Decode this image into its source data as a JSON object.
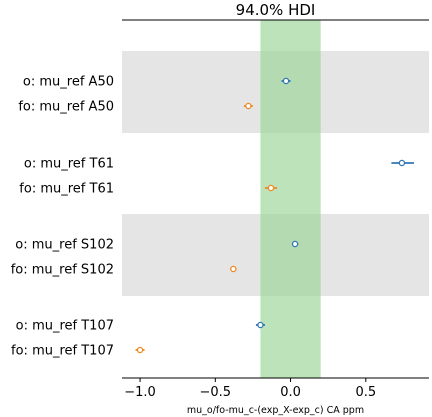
{
  "chart_data": {
    "type": "forest",
    "title": "94.0% HDI",
    "xlabel": "mu_o/fo-mu_c-(exp_X-exp_c) CA ppm",
    "xlim": [
      -1.12,
      0.92
    ],
    "xticks": [
      {
        "value": -1.0,
        "label": "−1.0"
      },
      {
        "value": -0.5,
        "label": "−0.5"
      },
      {
        "value": 0.0,
        "label": "0.0"
      },
      {
        "value": 0.5,
        "label": "0.5"
      }
    ],
    "rope": [
      -0.2,
      0.2
    ],
    "rope_color": "#98d494",
    "band_color": "#e5e5e5",
    "series_colors": {
      "o": "#2f77b5",
      "fo": "#ef8a22"
    },
    "groups": [
      {
        "shaded": true,
        "rows": [
          {
            "label": "o: mu_ref A50",
            "series": "o",
            "mean": -0.03,
            "hdi": [
              -0.06,
              0.0
            ]
          },
          {
            "label": "fo: mu_ref A50",
            "series": "fo",
            "mean": -0.28,
            "hdi": [
              -0.31,
              -0.25
            ]
          }
        ]
      },
      {
        "shaded": false,
        "rows": [
          {
            "label": "o: mu_ref T61",
            "series": "o",
            "mean": 0.74,
            "hdi": [
              0.67,
              0.82
            ]
          },
          {
            "label": "fo: mu_ref T61",
            "series": "fo",
            "mean": -0.13,
            "hdi": [
              -0.17,
              -0.09
            ]
          }
        ]
      },
      {
        "shaded": true,
        "rows": [
          {
            "label": "o: mu_ref S102",
            "series": "o",
            "mean": 0.03,
            "hdi": [
              0.01,
              0.05
            ]
          },
          {
            "label": "fo: mu_ref S102",
            "series": "fo",
            "mean": -0.38,
            "hdi": [
              -0.4,
              -0.36
            ]
          }
        ]
      },
      {
        "shaded": false,
        "rows": [
          {
            "label": "o: mu_ref T107",
            "series": "o",
            "mean": -0.2,
            "hdi": [
              -0.23,
              -0.17
            ]
          },
          {
            "label": "fo: mu_ref T107",
            "series": "fo",
            "mean": -1.0,
            "hdi": [
              -1.03,
              -0.97
            ]
          }
        ]
      }
    ]
  }
}
